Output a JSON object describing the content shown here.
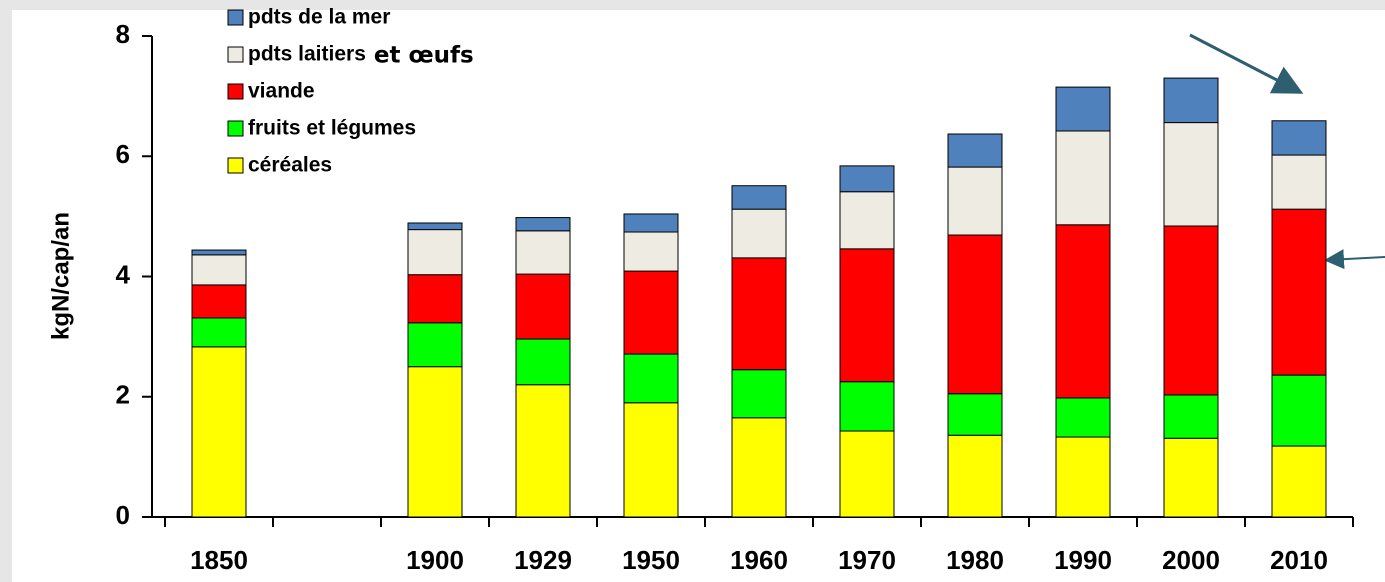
{
  "chart_data": {
    "type": "bar",
    "stacked": true,
    "y_label": "kgN/cap/an",
    "categories": [
      "1850",
      null,
      "1900",
      "1929",
      "1950",
      "1960",
      "1970",
      "1980",
      "1990",
      "2000",
      "2010"
    ],
    "series": [
      {
        "name": "céréales",
        "color": "#ffff00",
        "values": [
          2.83,
          null,
          2.5,
          2.2,
          1.9,
          1.65,
          1.43,
          1.36,
          1.33,
          1.31,
          1.18
        ]
      },
      {
        "name": "fruits et légumes",
        "color": "#00ff00",
        "values": [
          0.48,
          null,
          0.73,
          0.76,
          0.81,
          0.8,
          0.82,
          0.69,
          0.65,
          0.72,
          1.18
        ]
      },
      {
        "name": "viande",
        "color": "#ff0000",
        "values": [
          0.55,
          null,
          0.8,
          1.08,
          1.38,
          1.86,
          2.21,
          2.64,
          2.88,
          2.81,
          2.76
        ]
      },
      {
        "name": "pdts laitiers",
        "color": "#eeebe2",
        "values": [
          0.5,
          null,
          0.75,
          0.72,
          0.65,
          0.81,
          0.95,
          1.13,
          1.56,
          1.72,
          0.9
        ]
      },
      {
        "name": "pdts de la mer",
        "color": "#4f81bd",
        "values": [
          0.08,
          null,
          0.11,
          0.22,
          0.3,
          0.39,
          0.43,
          0.55,
          0.73,
          0.74,
          0.57
        ]
      }
    ],
    "annotations": [
      {
        "text": "et œufs",
        "color": "#31849b"
      }
    ],
    "ylim": [
      0,
      8
    ],
    "yticks": [
      0,
      2,
      4,
      6,
      8
    ],
    "grid": false,
    "legend": "top-left"
  }
}
